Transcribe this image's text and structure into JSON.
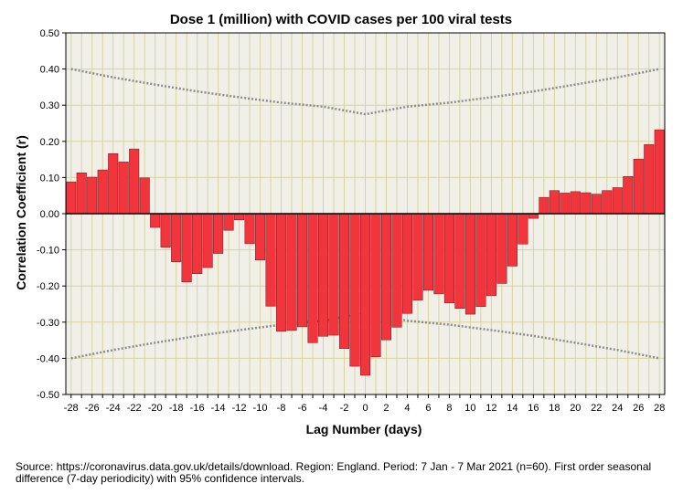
{
  "chart_data": {
    "type": "bar",
    "title": "Dose 1 (million) with COVID cases per 100 viral tests",
    "xlabel": "Lag Number (days)",
    "ylabel": "Correlation Coefficient (r)",
    "ylim": [
      -0.5,
      0.5
    ],
    "yticks": [
      "-0.50",
      "-0.40",
      "-0.30",
      "-0.20",
      "-0.10",
      "0.00",
      "0.10",
      "0.20",
      "0.30",
      "0.40",
      "0.50"
    ],
    "xticks": [
      "-28",
      "-26",
      "-24",
      "-22",
      "-20",
      "-18",
      "-16",
      "-14",
      "-12",
      "-10",
      "-8",
      "-6",
      "-4",
      "-2",
      "0",
      "2",
      "4",
      "6",
      "8",
      "10",
      "12",
      "14",
      "16",
      "18",
      "20",
      "22",
      "24",
      "26",
      "28"
    ],
    "grid": true,
    "categories": [
      -28,
      -27,
      -26,
      -25,
      -24,
      -23,
      -22,
      -21,
      -20,
      -19,
      -18,
      -17,
      -16,
      -15,
      -14,
      -13,
      -12,
      -11,
      -10,
      -9,
      -8,
      -7,
      -6,
      -5,
      -4,
      -3,
      -2,
      -1,
      0,
      1,
      2,
      3,
      4,
      5,
      6,
      7,
      8,
      9,
      10,
      11,
      12,
      13,
      14,
      15,
      16,
      17,
      18,
      19,
      20,
      21,
      22,
      23,
      24,
      25,
      26,
      27,
      28
    ],
    "values": [
      0.088,
      0.113,
      0.101,
      0.121,
      0.166,
      0.143,
      0.179,
      0.099,
      -0.038,
      -0.093,
      -0.133,
      -0.189,
      -0.166,
      -0.149,
      -0.11,
      -0.046,
      -0.017,
      -0.083,
      -0.128,
      -0.256,
      -0.325,
      -0.323,
      -0.313,
      -0.357,
      -0.339,
      -0.336,
      -0.373,
      -0.422,
      -0.447,
      -0.396,
      -0.349,
      -0.314,
      -0.276,
      -0.239,
      -0.212,
      -0.222,
      -0.247,
      -0.262,
      -0.278,
      -0.257,
      -0.227,
      -0.193,
      -0.145,
      -0.084,
      -0.013,
      0.045,
      0.064,
      0.057,
      0.061,
      0.058,
      0.054,
      0.064,
      0.072,
      0.103,
      0.151,
      0.191,
      0.232
    ],
    "confidence_interval": {
      "label": "95% confidence intervals",
      "x": [
        -28,
        -24,
        -20,
        -16,
        -12,
        -8,
        -4,
        0,
        4,
        8,
        12,
        16,
        20,
        24,
        28
      ],
      "upper": [
        0.4,
        0.377,
        0.357,
        0.338,
        0.322,
        0.307,
        0.296,
        0.275,
        0.296,
        0.307,
        0.322,
        0.338,
        0.357,
        0.377,
        0.4
      ],
      "lower": [
        -0.4,
        -0.377,
        -0.357,
        -0.338,
        -0.322,
        -0.307,
        -0.296,
        -0.275,
        -0.296,
        -0.307,
        -0.322,
        -0.338,
        -0.357,
        -0.377,
        -0.4
      ]
    },
    "colors": {
      "bar": "#f2343c",
      "bar_edge": "#7a1418",
      "plot_bg": "#f0f0e8",
      "grid": "#d8d4a0",
      "ci_line": "#8c8c8c",
      "zero_line": "#000000"
    }
  },
  "footnote": "Source: https://coronavirus.data.gov.uk/details/download. Region: England. Period: 7 Jan - 7 Mar 2021 (n=60). First order seasonal difference (7-day periodicity) with 95% confidence intervals."
}
